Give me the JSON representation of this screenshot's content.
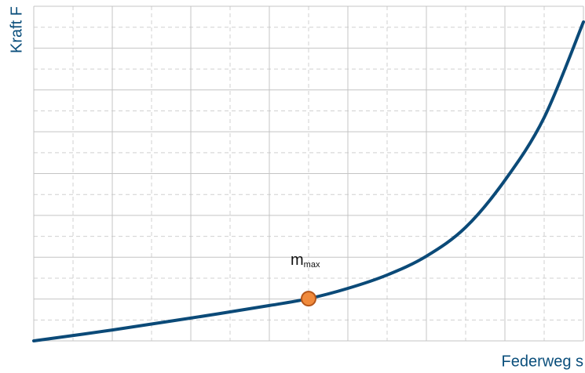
{
  "chart_data": {
    "type": "line",
    "x_label": "Federweg s",
    "y_label": "Kraft F",
    "x": [
      0,
      2,
      4,
      6,
      7,
      8,
      9,
      10,
      11,
      12,
      13,
      14
    ],
    "series": [
      {
        "color": "#0b4a78",
        "values": [
          0,
          0.52,
          1.09,
          1.69,
          2.02,
          2.51,
          3.15,
          4.05,
          5.43,
          7.68,
          10.68,
          15.25
        ]
      }
    ],
    "xlim": [
      0,
      14
    ],
    "ylim": [
      0,
      16
    ],
    "xticks": [
      0,
      2,
      4,
      6,
      8,
      10,
      12,
      14
    ],
    "xminorticks": [
      1,
      3,
      5,
      7,
      9,
      11,
      13
    ],
    "yticks": [
      0,
      2,
      4,
      6,
      8,
      10,
      12,
      14,
      16
    ],
    "yminorticks": [
      1,
      3,
      5,
      7,
      9,
      11,
      13,
      15
    ],
    "grid": true,
    "axis_color": "#0b4f7c",
    "highlight": {
      "x": 7,
      "y": 2.02,
      "color": "#f08a3c",
      "label": "m",
      "label_sub": "max"
    }
  }
}
